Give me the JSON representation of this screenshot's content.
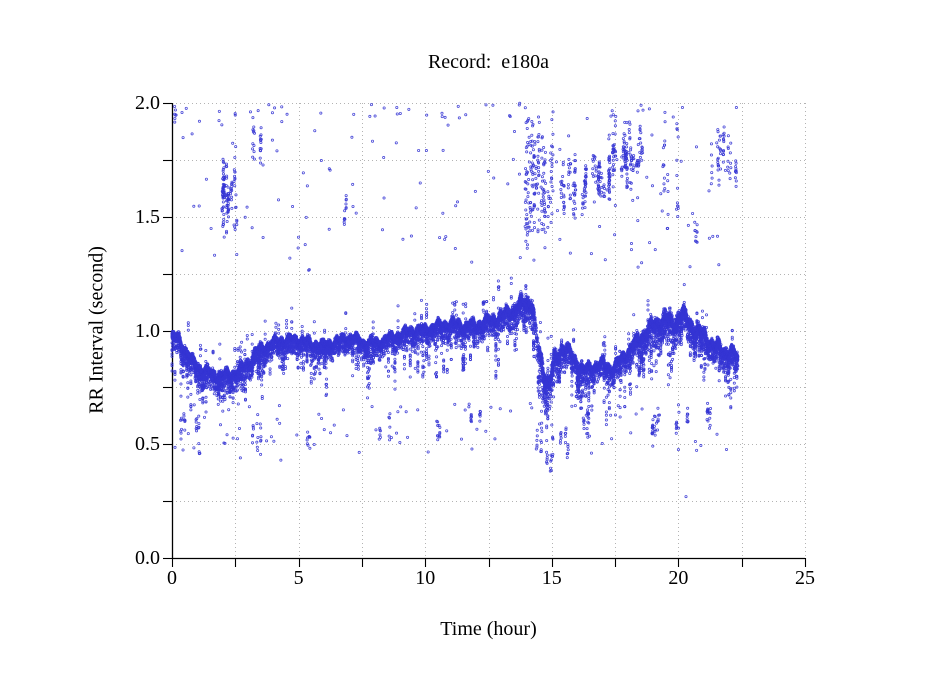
{
  "chart_data": {
    "type": "scatter",
    "title": "Record:  e180a",
    "xlabel": "Time (hour)",
    "ylabel": "RR Interval (second)",
    "xlim": [
      0,
      25
    ],
    "ylim": [
      0,
      2
    ],
    "x_major_ticks": [
      "0",
      "5",
      "10",
      "15",
      "20",
      "25"
    ],
    "x_major_values": [
      0,
      5,
      10,
      15,
      20,
      25
    ],
    "x_minor_step": 2.5,
    "y_tick_labels": [
      "0.0",
      "0.5",
      "1.0",
      "1.5",
      "2.0"
    ],
    "y_major_values": [
      0,
      0.5,
      1,
      1.5,
      2
    ],
    "y_minor_step": 0.25,
    "grid": {
      "visible": true,
      "style": "dotted",
      "color": "#b3b3b3",
      "x_step": 2.5,
      "y_step": 0.25
    },
    "axis_color": "#000000",
    "point": {
      "shape": "open-circle",
      "color": "#3535d4",
      "radius": 1.1,
      "alpha": 0.9
    },
    "time_range": [
      0,
      22.35
    ],
    "seed": 42,
    "main_band": {
      "points_per_hour": 480,
      "baseline": [
        [
          0,
          0.97
        ],
        [
          0.25,
          0.96
        ],
        [
          0.5,
          0.92
        ],
        [
          0.8,
          0.86
        ],
        [
          1.1,
          0.83
        ],
        [
          1.5,
          0.81
        ],
        [
          2.0,
          0.8
        ],
        [
          2.5,
          0.81
        ],
        [
          2.9,
          0.84
        ],
        [
          3.3,
          0.9
        ],
        [
          3.7,
          0.93
        ],
        [
          4.2,
          0.95
        ],
        [
          5.0,
          0.96
        ],
        [
          5.5,
          0.94
        ],
        [
          6.0,
          0.93
        ],
        [
          6.5,
          0.95
        ],
        [
          7.0,
          0.97
        ],
        [
          7.5,
          0.95
        ],
        [
          8.0,
          0.94
        ],
        [
          8.5,
          0.96
        ],
        [
          9.0,
          0.98
        ],
        [
          9.5,
          1.0
        ],
        [
          10.0,
          1.0
        ],
        [
          10.5,
          1.02
        ],
        [
          11.0,
          1.03
        ],
        [
          11.5,
          1.02
        ],
        [
          12.0,
          1.02
        ],
        [
          12.5,
          1.04
        ],
        [
          13.0,
          1.06
        ],
        [
          13.5,
          1.09
        ],
        [
          13.9,
          1.12
        ],
        [
          14.2,
          1.13
        ],
        [
          14.35,
          1.0
        ],
        [
          14.5,
          0.88
        ],
        [
          14.7,
          0.82
        ],
        [
          14.9,
          0.76
        ],
        [
          15.1,
          0.86
        ],
        [
          15.4,
          0.93
        ],
        [
          15.7,
          0.9
        ],
        [
          16.0,
          0.86
        ],
        [
          16.3,
          0.82
        ],
        [
          16.6,
          0.84
        ],
        [
          17.0,
          0.85
        ],
        [
          17.4,
          0.83
        ],
        [
          17.8,
          0.88
        ],
        [
          18.2,
          0.93
        ],
        [
          18.6,
          0.98
        ],
        [
          19.0,
          1.02
        ],
        [
          19.4,
          1.05
        ],
        [
          19.8,
          1.03
        ],
        [
          20.1,
          1.07
        ],
        [
          20.4,
          1.04
        ],
        [
          20.7,
          1.0
        ],
        [
          21.0,
          0.98
        ],
        [
          21.4,
          0.93
        ],
        [
          21.8,
          0.91
        ],
        [
          22.1,
          0.9
        ],
        [
          22.35,
          0.88
        ]
      ],
      "halfwidth": [
        [
          0,
          0.05
        ],
        [
          1,
          0.05
        ],
        [
          2,
          0.05
        ],
        [
          3,
          0.05
        ],
        [
          5,
          0.045
        ],
        [
          8,
          0.045
        ],
        [
          10,
          0.045
        ],
        [
          12,
          0.05
        ],
        [
          13,
          0.055
        ],
        [
          14,
          0.07
        ],
        [
          14.6,
          0.1
        ],
        [
          15,
          0.08
        ],
        [
          16,
          0.05
        ],
        [
          17,
          0.05
        ],
        [
          18,
          0.05
        ],
        [
          19,
          0.07
        ],
        [
          19.5,
          0.08
        ],
        [
          20,
          0.08
        ],
        [
          20.5,
          0.06
        ],
        [
          21,
          0.06
        ],
        [
          22,
          0.06
        ],
        [
          22.35,
          0.05
        ]
      ],
      "gaps": [
        [
          14.32,
          14.5,
          0.5
        ]
      ],
      "down_spike": {
        "prob": 0.011,
        "extra_depth": 0.16
      },
      "up_spike": {
        "prob": 0.006,
        "extra_height": 0.07
      }
    },
    "upper_outliers": {
      "scattered": {
        "n": 150,
        "t": [
          0.1,
          22.3
        ],
        "y": [
          1.26,
          2.0
        ]
      },
      "near_top_row": {
        "n": 22,
        "t": [
          0.3,
          22.3
        ],
        "y": [
          1.94,
          2.0
        ]
      },
      "clusters": [
        [
          0.05,
          0.35,
          1.86,
          2.0,
          8
        ],
        [
          1.85,
          2.55,
          1.38,
          1.78,
          120
        ],
        [
          2.75,
          3.55,
          1.7,
          1.95,
          22
        ],
        [
          6.75,
          7.05,
          1.45,
          1.63,
          12
        ],
        [
          13.9,
          14.75,
          1.3,
          2.0,
          140
        ],
        [
          14.8,
          15.15,
          1.35,
          2.0,
          26
        ],
        [
          15.3,
          16.45,
          1.45,
          1.8,
          85
        ],
        [
          16.6,
          17.35,
          1.5,
          1.8,
          70
        ],
        [
          17.25,
          18.05,
          1.6,
          1.95,
          85
        ],
        [
          18.05,
          18.6,
          1.58,
          1.93,
          50
        ],
        [
          19.35,
          20.05,
          1.35,
          2.0,
          28
        ],
        [
          20.5,
          21.05,
          1.33,
          1.52,
          10
        ],
        [
          21.3,
          22.35,
          1.58,
          1.9,
          60
        ]
      ]
    },
    "lower_outliers": {
      "scattered": {
        "n": 90,
        "t": [
          0.1,
          22.3
        ],
        "y": [
          0.46,
          0.68
        ]
      },
      "clusters": [
        [
          0.2,
          1.2,
          0.45,
          0.68,
          26
        ],
        [
          2.4,
          3.6,
          0.42,
          0.64,
          16
        ],
        [
          5.0,
          6.2,
          0.45,
          0.62,
          10
        ],
        [
          7.4,
          8.6,
          0.5,
          0.66,
          12
        ],
        [
          9.4,
          10.6,
          0.5,
          0.66,
          12
        ],
        [
          11.8,
          13.2,
          0.54,
          0.68,
          14
        ],
        [
          14.2,
          15.7,
          0.37,
          0.64,
          48
        ],
        [
          16.0,
          17.4,
          0.48,
          0.68,
          16
        ],
        [
          18.4,
          19.6,
          0.45,
          0.68,
          22
        ],
        [
          19.8,
          20.7,
          0.52,
          0.68,
          14
        ],
        [
          21.0,
          22.3,
          0.55,
          0.7,
          18
        ]
      ],
      "singles": [
        [
          20.3,
          0.27
        ],
        [
          4.3,
          0.43
        ],
        [
          2.7,
          0.44
        ],
        [
          1.1,
          0.46
        ]
      ]
    }
  }
}
